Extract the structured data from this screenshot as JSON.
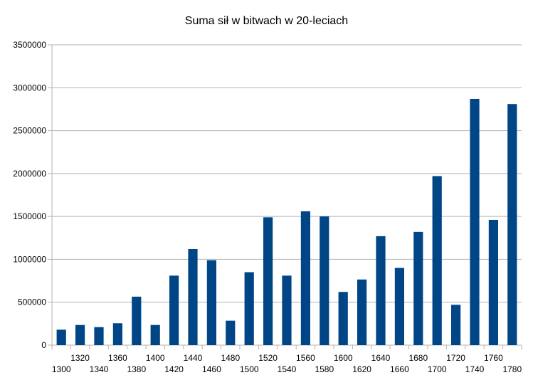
{
  "chart_data": {
    "type": "bar",
    "title": "Suma sił w bitwach w 20-leciach",
    "xlabel": "",
    "ylabel": "",
    "ylim": [
      0,
      3500000
    ],
    "y_ticks": [
      0,
      500000,
      1000000,
      1500000,
      2000000,
      2500000,
      3000000,
      3500000
    ],
    "grid": true,
    "legend": "none",
    "bar_color": "#004586",
    "categories": [
      "1300",
      "1320",
      "1340",
      "1360",
      "1380",
      "1400",
      "1420",
      "1440",
      "1460",
      "1480",
      "1500",
      "1520",
      "1540",
      "1560",
      "1580",
      "1600",
      "1620",
      "1640",
      "1660",
      "1680",
      "1700",
      "1720",
      "1740",
      "1760",
      "1780"
    ],
    "values": [
      180000,
      235000,
      210000,
      255000,
      565000,
      235000,
      810000,
      1120000,
      990000,
      285000,
      850000,
      1490000,
      810000,
      1560000,
      1500000,
      620000,
      765000,
      1270000,
      900000,
      1320000,
      1970000,
      470000,
      2870000,
      1460000,
      2810000
    ]
  }
}
